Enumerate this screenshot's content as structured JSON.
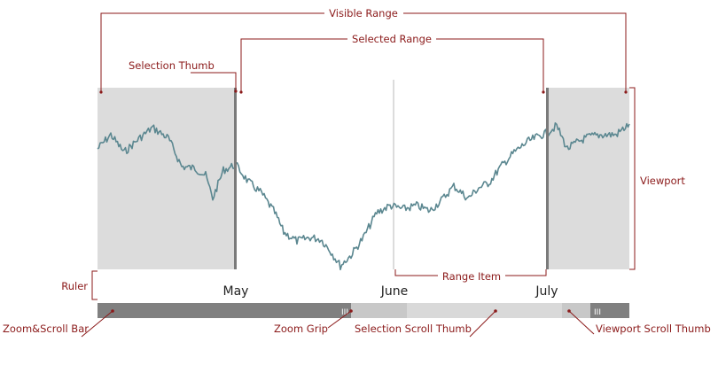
{
  "callouts": {
    "visible_range": "Visible Range",
    "selected_range": "Selected Range",
    "selection_thumb": "Selection Thumb",
    "viewport": "Viewport",
    "ruler": "Ruler",
    "range_item": "Range Item",
    "zoom_scroll_bar": "Zoom&Scroll Bar",
    "zoom_grip": "Zoom Grip",
    "selection_scroll_thumb": "Selection Scroll Thumb",
    "viewport_scroll_thumb": "Viewport Scroll Thumb"
  },
  "ruler": {
    "labels": [
      "May",
      "June",
      "July"
    ]
  },
  "grip_glyph": "III",
  "colors": {
    "callout": "#8b1a1a",
    "series": "#5b8790",
    "shade": "#dcdcdc",
    "thumb": "#7a7a7a",
    "scrollbar_dark": "#808080",
    "scrollbar_mid": "#c8c8c8",
    "scrollbar_light": "#d9d9d9"
  }
}
